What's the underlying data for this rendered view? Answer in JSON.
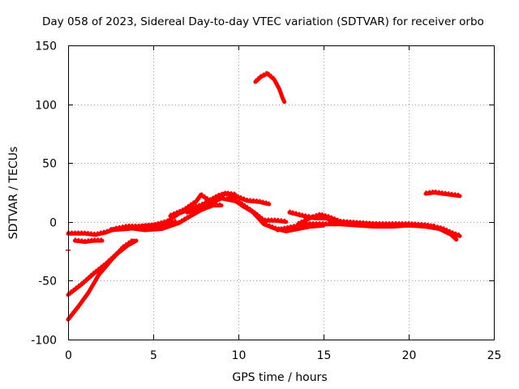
{
  "chart_data": {
    "type": "scatter",
    "title": "Day 058 of 2023, Sidereal Day-to-day VTEC variation (SDTVAR) for receiver orbo",
    "xlabel": "GPS time / hours",
    "ylabel": "SDTVAR / TECUs",
    "xlim": [
      0,
      25
    ],
    "ylim": [
      -100,
      150
    ],
    "xticks": [
      "0",
      "5",
      "10",
      "15",
      "20",
      "25"
    ],
    "yticks": [
      "-100",
      "-50",
      "0",
      "50",
      "100",
      "150"
    ],
    "grid": true,
    "color": "#ff0000",
    "series": [
      {
        "name": "track-1",
        "points": [
          [
            0,
            -10
          ],
          [
            0.5,
            -10
          ],
          [
            1,
            -10
          ],
          [
            1.6,
            -11
          ],
          [
            2.2,
            -9
          ],
          [
            2.8,
            -6
          ],
          [
            3.5,
            -4
          ],
          [
            4.2,
            -4
          ],
          [
            5,
            -3
          ],
          [
            5.8,
            0
          ],
          [
            6.5,
            7
          ],
          [
            7.2,
            11
          ],
          [
            7.8,
            14
          ],
          [
            8.5,
            19
          ],
          [
            9.2,
            24
          ],
          [
            9.8,
            22
          ],
          [
            10.5,
            18
          ],
          [
            11.2,
            17
          ],
          [
            11.8,
            15
          ]
        ]
      },
      {
        "name": "track-2",
        "points": [
          [
            0.4,
            -16
          ],
          [
            1,
            -17
          ],
          [
            1.5,
            -16
          ],
          [
            2,
            -16
          ]
        ]
      },
      {
        "name": "track-3",
        "points": [
          [
            0,
            -62
          ],
          [
            0.8,
            -53
          ],
          [
            1.5,
            -44
          ],
          [
            2.2,
            -36
          ],
          [
            2.8,
            -28
          ],
          [
            3.5,
            -20
          ],
          [
            4,
            -16
          ]
        ]
      },
      {
        "name": "track-4",
        "points": [
          [
            0,
            -83
          ],
          [
            0.6,
            -72
          ],
          [
            1.2,
            -60
          ],
          [
            1.8,
            -45
          ],
          [
            2.5,
            -33
          ],
          [
            3.2,
            -22
          ],
          [
            3.8,
            -16
          ]
        ]
      },
      {
        "name": "track-5",
        "points": [
          [
            2.5,
            -7
          ],
          [
            3.5,
            -6
          ],
          [
            4.5,
            -4
          ],
          [
            5.5,
            -3
          ],
          [
            6.3,
            0
          ]
        ]
      },
      {
        "name": "track-6",
        "points": [
          [
            3.5,
            -5
          ],
          [
            4.5,
            -7
          ],
          [
            5.5,
            -6
          ],
          [
            6.5,
            -1
          ],
          [
            7.2,
            5
          ],
          [
            7.8,
            10
          ],
          [
            8.5,
            14
          ],
          [
            9,
            14
          ]
        ]
      },
      {
        "name": "track-7",
        "points": [
          [
            6,
            5
          ],
          [
            6.8,
            10
          ],
          [
            7.5,
            17
          ],
          [
            7.8,
            23
          ],
          [
            8.3,
            18
          ],
          [
            8.8,
            22
          ],
          [
            9.3,
            24
          ],
          [
            9.8,
            23
          ]
        ]
      },
      {
        "name": "track-8",
        "points": [
          [
            7,
            8
          ],
          [
            8,
            13
          ],
          [
            9,
            20
          ],
          [
            10,
            17
          ],
          [
            10.8,
            9
          ],
          [
            11.5,
            -2
          ],
          [
            12.2,
            -6
          ],
          [
            12.8,
            -8
          ],
          [
            13.5,
            -6
          ],
          [
            14.2,
            -4
          ],
          [
            15,
            -3
          ]
        ]
      },
      {
        "name": "track-9",
        "points": [
          [
            9.5,
            21
          ],
          [
            10.3,
            13
          ],
          [
            11,
            7
          ],
          [
            11.5,
            1
          ],
          [
            12.2,
            1
          ],
          [
            12.8,
            0
          ]
        ]
      },
      {
        "name": "track-10",
        "points": [
          [
            12.3,
            -7
          ],
          [
            13,
            -5
          ],
          [
            14,
            -2
          ],
          [
            15,
            -2
          ],
          [
            16,
            -2
          ],
          [
            17,
            -3
          ],
          [
            18,
            -4
          ],
          [
            19,
            -4
          ],
          [
            20,
            -3
          ],
          [
            21,
            -4
          ],
          [
            21.8,
            -6
          ],
          [
            22.5,
            -11
          ],
          [
            22.8,
            -15
          ]
        ]
      },
      {
        "name": "track-11",
        "points": [
          [
            13,
            8
          ],
          [
            13.8,
            5
          ],
          [
            14.5,
            3
          ],
          [
            15.2,
            3
          ],
          [
            15.5,
            0
          ],
          [
            16.5,
            -2
          ],
          [
            17.5,
            -2
          ],
          [
            18.5,
            -3
          ],
          [
            19.5,
            -3
          ],
          [
            20.5,
            -3
          ],
          [
            21.5,
            -4
          ]
        ]
      },
      {
        "name": "track-12",
        "points": [
          [
            13.5,
            -2
          ],
          [
            14.2,
            3
          ],
          [
            14.8,
            6
          ],
          [
            15.3,
            4
          ],
          [
            16,
            0
          ],
          [
            17,
            -1
          ],
          [
            18,
            -2
          ],
          [
            19,
            -2
          ],
          [
            20,
            -2
          ],
          [
            21,
            -3
          ],
          [
            22,
            -6
          ],
          [
            22.6,
            -10
          ],
          [
            23,
            -12
          ]
        ]
      },
      {
        "name": "track-13",
        "points": [
          [
            11,
            119
          ],
          [
            11.3,
            123
          ],
          [
            11.7,
            126
          ],
          [
            12.1,
            121
          ],
          [
            12.4,
            113
          ],
          [
            12.6,
            105
          ],
          [
            12.7,
            102
          ]
        ]
      },
      {
        "name": "track-14",
        "points": [
          [
            21,
            24
          ],
          [
            21.5,
            25
          ],
          [
            22,
            24
          ],
          [
            22.5,
            23
          ],
          [
            23,
            22
          ]
        ]
      }
    ],
    "markers": [
      {
        "name": "marker-1",
        "point": [
          0,
          -24
        ]
      }
    ]
  }
}
